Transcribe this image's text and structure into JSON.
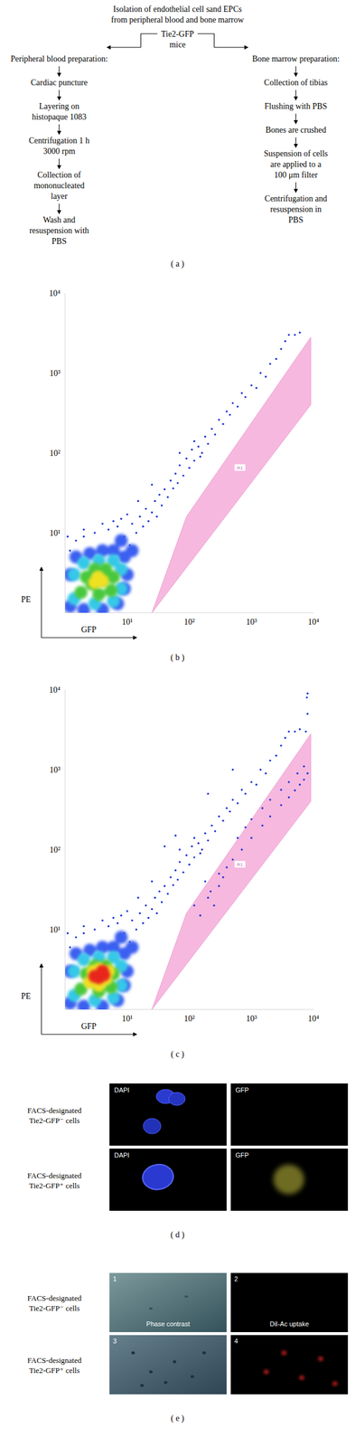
{
  "flowchart": {
    "title": [
      "Isolation of endothelial cell sand EPCs",
      "from peripheral blood and bone marrow"
    ],
    "source": [
      "Tie2-GFP",
      "mice"
    ],
    "branches": [
      {
        "header": "Peripheral blood preparation:",
        "steps": [
          [
            "Cardiac puncture"
          ],
          [
            "Layering on",
            "histopaque 1083"
          ],
          [
            "Centrifugation 1 h",
            "3000 rpm"
          ],
          [
            "Collection of",
            "mononucleated",
            "layer"
          ],
          [
            "Wash and",
            "resuspension with",
            "PBS"
          ]
        ]
      },
      {
        "header": "Bone marrow preparation:",
        "steps": [
          [
            "Collection of tibias"
          ],
          [
            "Flushing with PBS"
          ],
          [
            "Bones are crushed"
          ],
          [
            "Suspension of cells",
            "are applied to a",
            "100 μm filter"
          ],
          [
            "Centrifugation and",
            "resuspension in",
            "PBS"
          ]
        ]
      }
    ],
    "caption": "( a )"
  },
  "chart_data": [
    {
      "type": "scatter",
      "caption": "( b )",
      "x_label": "GFP",
      "y_label": "PE",
      "log": true,
      "grid": false,
      "xlim": [
        1,
        10000
      ],
      "ylim": [
        1,
        10000
      ],
      "xticks": [
        {
          "value": 10,
          "label": "10¹"
        },
        {
          "value": 100,
          "label": "10²"
        },
        {
          "value": 1000,
          "label": "10³"
        },
        {
          "value": 10000,
          "label": "10⁴"
        }
      ],
      "yticks": [
        {
          "value": 10,
          "label": "10¹"
        },
        {
          "value": 100,
          "label": "10²"
        },
        {
          "value": 1000,
          "label": "10³"
        },
        {
          "value": 10000,
          "label": "10⁴"
        }
      ],
      "gate": {
        "label": "R1",
        "x": [
          25,
          90,
          9000,
          9000
        ],
        "y": [
          1,
          16,
          2800,
          400
        ]
      },
      "series": [
        {
          "color": "#1e35d8",
          "marker": "dot",
          "x": [
            1.2,
            1.5,
            2,
            3,
            5,
            7,
            9,
            11,
            12,
            14,
            16,
            18,
            20,
            22,
            25,
            28,
            30,
            33,
            36,
            40,
            45,
            50,
            55,
            60,
            65,
            70,
            80,
            90,
            100,
            110,
            120,
            140,
            160,
            180,
            200,
            230,
            260,
            300,
            350,
            400,
            450,
            500,
            600,
            700,
            800,
            1000,
            1200,
            1400,
            1700,
            2000,
            2500,
            3000,
            3500,
            4000,
            5000,
            6000,
            2,
            4,
            6,
            8,
            10,
            1.3,
            1.1,
            25,
            15,
            70,
            150,
            120
          ],
          "values": [
            6,
            8,
            9,
            10,
            11,
            12,
            9,
            7,
            13,
            10,
            16,
            12,
            20,
            14,
            18,
            25,
            16,
            30,
            22,
            35,
            28,
            45,
            36,
            55,
            42,
            70,
            52,
            85,
            65,
            110,
            80,
            120,
            100,
            160,
            130,
            200,
            170,
            260,
            230,
            330,
            300,
            420,
            380,
            560,
            500,
            700,
            650,
            1000,
            900,
            1300,
            1500,
            2000,
            2500,
            3000,
            3000,
            3200,
            11,
            13,
            14,
            15,
            17,
            3,
            9,
            40,
            25,
            100,
            90,
            140
          ]
        },
        {
          "color": "#3a5ef0",
          "marker": "blob",
          "x": [
            1.2,
            1.2,
            1.5,
            2.5,
            4,
            6,
            9,
            10,
            9,
            7,
            4,
            2,
            12,
            8
          ],
          "values": [
            1.2,
            3,
            5,
            5.5,
            6,
            6,
            5,
            3,
            2,
            1.3,
            1.1,
            1.1,
            6,
            8
          ]
        },
        {
          "color": "#35c8e8",
          "marker": "blob",
          "x": [
            1.4,
            1.4,
            2,
            3.5,
            6,
            8,
            8,
            6,
            3
          ],
          "values": [
            1.5,
            3,
            4.2,
            4.5,
            4.5,
            3.5,
            2,
            1.4,
            1.3
          ]
        },
        {
          "color": "#48c83c",
          "marker": "blob",
          "x": [
            1.8,
            2.2,
            3,
            4.5,
            6,
            5.5,
            3.5,
            2.7,
            4
          ],
          "values": [
            1.8,
            2.8,
            3.5,
            3.5,
            2.8,
            1.9,
            1.7,
            2.3,
            2.6
          ]
        },
        {
          "color": "#f0e020",
          "marker": "blob",
          "x": [
            3,
            4,
            3.4
          ],
          "values": [
            2.4,
            2.5,
            2.8
          ]
        }
      ]
    },
    {
      "type": "scatter",
      "caption": "( c )",
      "x_label": "GFP",
      "y_label": "PE",
      "log": true,
      "grid": false,
      "xlim": [
        1,
        10000
      ],
      "ylim": [
        1,
        10000
      ],
      "xticks": [
        {
          "value": 10,
          "label": "10¹"
        },
        {
          "value": 100,
          "label": "10²"
        },
        {
          "value": 1000,
          "label": "10³"
        },
        {
          "value": 10000,
          "label": "10⁴"
        }
      ],
      "yticks": [
        {
          "value": 10,
          "label": "10¹"
        },
        {
          "value": 100,
          "label": "10²"
        },
        {
          "value": 1000,
          "label": "10³"
        },
        {
          "value": 10000,
          "label": "10⁴"
        }
      ],
      "gate": {
        "label": "R1",
        "x": [
          25,
          90,
          9000,
          9000
        ],
        "y": [
          1,
          16,
          2800,
          400
        ]
      },
      "series": [
        {
          "color": "#1e35d8",
          "marker": "dot",
          "x": [
            1.2,
            1.5,
            2,
            3,
            5,
            7,
            9,
            11,
            12,
            14,
            16,
            18,
            20,
            22,
            25,
            28,
            30,
            33,
            36,
            40,
            45,
            50,
            55,
            60,
            65,
            70,
            80,
            90,
            100,
            110,
            120,
            140,
            160,
            180,
            200,
            230,
            260,
            300,
            350,
            400,
            450,
            500,
            600,
            700,
            800,
            1000,
            1200,
            1400,
            1700,
            2000,
            2500,
            3000,
            3500,
            4000,
            5000,
            6000,
            2,
            4,
            6,
            8,
            10,
            1.3,
            1.1,
            25,
            15,
            70,
            150,
            120,
            300,
            400,
            500,
            700,
            1000,
            1500,
            2000,
            3000,
            4000,
            5000,
            6000,
            7000,
            8000,
            600,
            800,
            1000,
            1500,
            2000,
            3000,
            4000,
            5500,
            7000,
            150,
            200,
            250,
            180,
            300,
            120,
            350,
            220,
            7500,
            8000,
            7800,
            8000,
            60,
            40,
            200,
            500
          ],
          "values": [
            6,
            8,
            9,
            10,
            11,
            12,
            9,
            7,
            13,
            10,
            16,
            12,
            20,
            14,
            18,
            25,
            16,
            30,
            22,
            35,
            28,
            45,
            36,
            55,
            42,
            70,
            52,
            85,
            65,
            110,
            80,
            120,
            100,
            160,
            130,
            200,
            170,
            260,
            230,
            330,
            300,
            420,
            380,
            560,
            500,
            700,
            650,
            1000,
            900,
            1300,
            1500,
            2000,
            2500,
            3000,
            3000,
            3200,
            11,
            13,
            14,
            15,
            17,
            3,
            9,
            40,
            25,
            100,
            90,
            140,
            50,
            60,
            75,
            100,
            140,
            200,
            260,
            360,
            450,
            550,
            650,
            750,
            900,
            140,
            190,
            240,
            330,
            420,
            560,
            700,
            900,
            1100,
            15,
            25,
            20,
            40,
            35,
            20,
            45,
            30,
            3000,
            5000,
            8000,
            9000,
            150,
            110,
            500,
            1000
          ]
        },
        {
          "color": "#3a5ef0",
          "marker": "blob",
          "x": [
            1.2,
            1.2,
            1.5,
            2.5,
            4,
            6,
            9,
            10,
            9,
            7,
            4,
            2,
            12,
            8
          ],
          "values": [
            1.2,
            3,
            5,
            5.5,
            6,
            6,
            5,
            3,
            2,
            1.3,
            1.1,
            1.1,
            6,
            8
          ]
        },
        {
          "color": "#35c8e8",
          "marker": "blob",
          "x": [
            1.4,
            1.4,
            2,
            3.5,
            6,
            8,
            8,
            6,
            3
          ],
          "values": [
            1.5,
            3,
            4.2,
            4.5,
            4.5,
            3.5,
            2,
            1.4,
            1.3
          ]
        },
        {
          "color": "#48c83c",
          "marker": "blob",
          "x": [
            1.8,
            2.2,
            3,
            4.5,
            6,
            5.5,
            3.5,
            2.7,
            4
          ],
          "values": [
            1.8,
            2.8,
            3.5,
            3.5,
            2.8,
            1.9,
            1.7,
            2.3,
            2.6
          ]
        },
        {
          "color": "#f0e020",
          "marker": "blob",
          "x": [
            2.5,
            3.5,
            4.5,
            5,
            3.5,
            2.8
          ],
          "values": [
            2.2,
            2,
            2.4,
            3,
            3.2,
            3
          ]
        },
        {
          "color": "#e8281c",
          "marker": "blob",
          "x": [
            3.5,
            4.2,
            3,
            4
          ],
          "values": [
            2.5,
            2.7,
            2.6,
            3
          ]
        }
      ]
    }
  ],
  "micrographs": [
    {
      "caption": "( d )",
      "rows": [
        {
          "label": [
            "FACS-designated",
            "Tie2-GFP⁻ cells"
          ],
          "panels": [
            {
              "text": "DAPI"
            },
            {
              "text": "GFP"
            }
          ]
        },
        {
          "label": [
            "FACS-designated",
            "Tie2-GFP⁺ cells"
          ],
          "panels": [
            {
              "text": "DAPI"
            },
            {
              "text": "GFP"
            }
          ]
        }
      ]
    },
    {
      "caption": "( e )",
      "rows": [
        {
          "label": [
            "FACS-designated",
            "Tie2-GFP⁻ cells"
          ],
          "panels": [
            {
              "number": 1,
              "text": "Phase contrast"
            },
            {
              "number": 2,
              "text": "DiI-Ac uptake"
            }
          ]
        },
        {
          "label": [
            "FACS-designated",
            "Tie2-GFP⁺ cells"
          ],
          "panels": [
            {
              "number": 3
            },
            {
              "number": 4
            }
          ]
        }
      ]
    }
  ]
}
